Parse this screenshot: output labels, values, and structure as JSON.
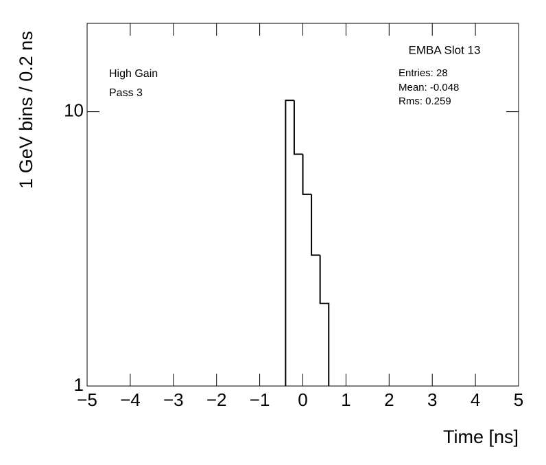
{
  "chart_data": {
    "type": "histogram",
    "title": "EMBA Slot 13",
    "annotations": [
      "High Gain",
      "Pass 3"
    ],
    "stats": [
      "Entries: 28",
      "Mean: -0.048",
      "Rms: 0.259"
    ],
    "x_label": "Time [ns]",
    "y_label": "1 GeV bins / 0.2 ns",
    "bins": [
      -0.4,
      -0.2,
      0,
      0.2,
      0.4,
      0.6
    ],
    "values": [
      11,
      7,
      5,
      3,
      2
    ],
    "color": "#000000",
    "log_y": true,
    "xlim": [
      -5,
      5
    ],
    "ylim": [
      1,
      21
    ],
    "xticks": [
      {
        "value": -5,
        "label": "−5"
      },
      {
        "value": -4,
        "label": "−4"
      },
      {
        "value": -3,
        "label": "−3"
      },
      {
        "value": -2,
        "label": "−2"
      },
      {
        "value": -1,
        "label": "−1"
      },
      0,
      1,
      2,
      3,
      4,
      5
    ],
    "yticks": [
      1,
      10
    ]
  }
}
